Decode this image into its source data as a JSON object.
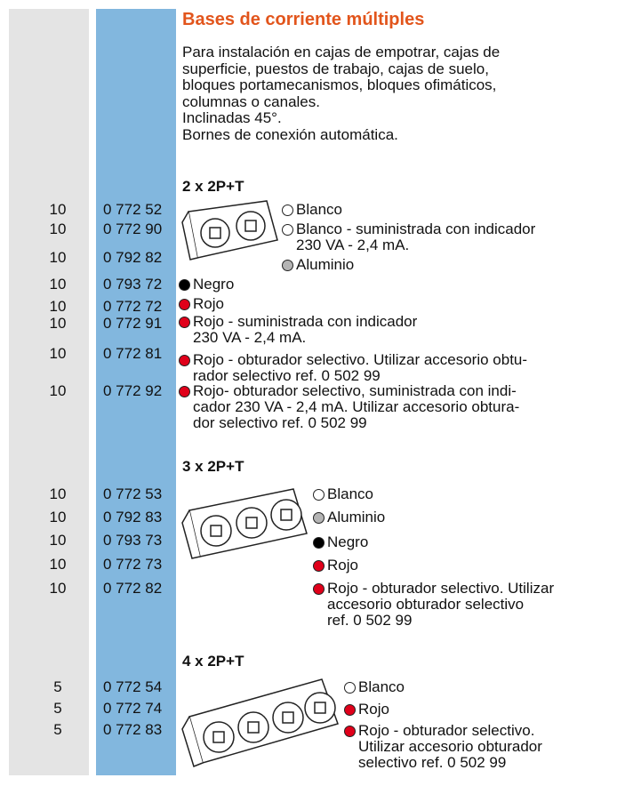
{
  "title": "Bases de corriente múltiples",
  "intro": [
    "Para instalación en cajas de empotrar, cajas de",
    "superficie, puestos de trabajo, cajas de suelo,",
    "bloques portamecanismos, bloques ofimáticos,",
    "columnas o canales.",
    "Inclinadas 45°.",
    "Bornes de conexión automática."
  ],
  "sections": [
    {
      "heading": "2 x 2P+T",
      "rows": [
        {
          "qty": 10,
          "ref": "0 772 52",
          "dot": "#ffffff",
          "lines": [
            "Blanco"
          ]
        },
        {
          "qty": 10,
          "ref": "0 772 90",
          "dot": "#ffffff",
          "lines": [
            "Blanco - suministrada con indicador",
            "230 VA - 2,4 mA."
          ]
        },
        {
          "qty": 10,
          "ref": "0 792 82",
          "dot": "#b4b4b4",
          "lines": [
            "Aluminio"
          ]
        },
        {
          "qty": 10,
          "ref": "0 793 72",
          "dot": "#000000",
          "lines": [
            "Negro"
          ]
        },
        {
          "qty": 10,
          "ref": "0 772 72",
          "dot": "#e0001a",
          "lines": [
            "Rojo"
          ]
        },
        {
          "qty": 10,
          "ref": "0 772 91",
          "dot": "#e0001a",
          "lines": [
            "Rojo - suministrada con indicador",
            "230 VA - 2,4 mA."
          ]
        },
        {
          "qty": 10,
          "ref": "0 772 81",
          "dot": "#e0001a",
          "lines": [
            "Rojo - obturador selectivo. Utilizar accesorio obtu-",
            "rador selectivo ref. 0 502 99"
          ]
        },
        {
          "qty": 10,
          "ref": "0 772 92",
          "dot": "#e0001a",
          "lines": [
            "Rojo- obturador selectivo, suministrada con indi-",
            "cador 230 VA - 2,4 mA. Utilizar accesorio obtura-",
            "dor selectivo ref. 0 502 99"
          ]
        }
      ]
    },
    {
      "heading": "3 x 2P+T",
      "rows": [
        {
          "qty": 10,
          "ref": "0 772 53",
          "dot": "#ffffff",
          "lines": [
            "Blanco"
          ]
        },
        {
          "qty": 10,
          "ref": "0 792 83",
          "dot": "#b4b4b4",
          "lines": [
            "Aluminio"
          ]
        },
        {
          "qty": 10,
          "ref": "0 793 73",
          "dot": "#000000",
          "lines": [
            "Negro"
          ]
        },
        {
          "qty": 10,
          "ref": "0 772 73",
          "dot": "#e0001a",
          "lines": [
            "Rojo"
          ]
        },
        {
          "qty": 10,
          "ref": "0 772 82",
          "dot": "#e0001a",
          "lines": [
            "Rojo - obturador selectivo. Utilizar",
            "accesorio obturador selectivo",
            "ref. 0 502 99"
          ]
        }
      ]
    },
    {
      "heading": "4 x 2P+T",
      "rows": [
        {
          "qty": 5,
          "ref": "0 772 54",
          "dot": "#ffffff",
          "lines": [
            "Blanco"
          ]
        },
        {
          "qty": 5,
          "ref": "0 772 74",
          "dot": "#e0001a",
          "lines": [
            "Rojo"
          ]
        },
        {
          "qty": 5,
          "ref": "0 772 83",
          "dot": "#e0001a",
          "lines": [
            "Rojo - obturador selectivo.",
            "Utilizar accesorio obturador",
            "selectivo ref. 0 502 99"
          ]
        }
      ]
    }
  ]
}
